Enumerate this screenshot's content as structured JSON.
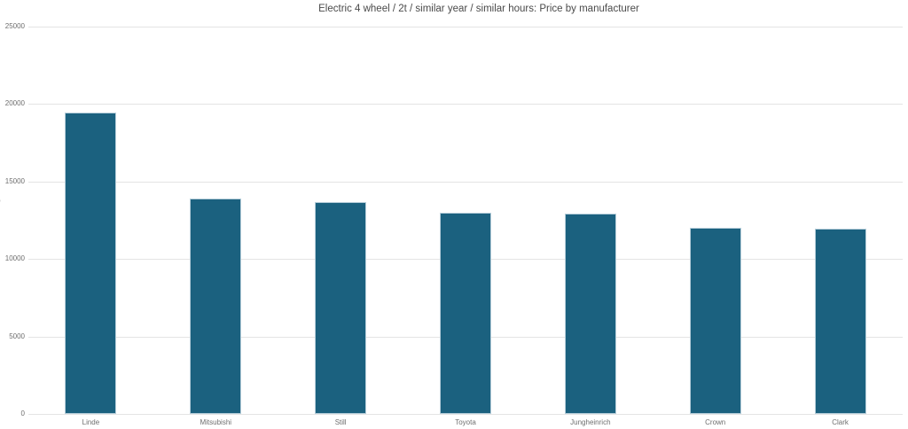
{
  "chart_data": {
    "type": "bar",
    "title": "Electric 4 wheel / 2t / similar year / similar hours: Price by manufacturer",
    "categories": [
      "Linde",
      "Mitsubishi",
      "Still",
      "Toyota",
      "Jungheinrich",
      "Crown",
      "Clark"
    ],
    "values": [
      19450,
      13900,
      13700,
      13000,
      12950,
      12000,
      11950
    ],
    "xlabel": "",
    "ylabel": "",
    "ylim": [
      0,
      25000
    ],
    "yticks": [
      0,
      5000,
      10000,
      15000,
      20000,
      25000
    ],
    "grid": "horizontal",
    "legend": "none",
    "bar_color": "#1b617f",
    "bar_border_color": "#b5cdd9",
    "grid_color": "#e4e4e4",
    "title_color": "#4a4a4a",
    "tick_label_color": "#6e6e6e",
    "background_color": "#ffffff",
    "clipped_left_edge_text": "0"
  }
}
